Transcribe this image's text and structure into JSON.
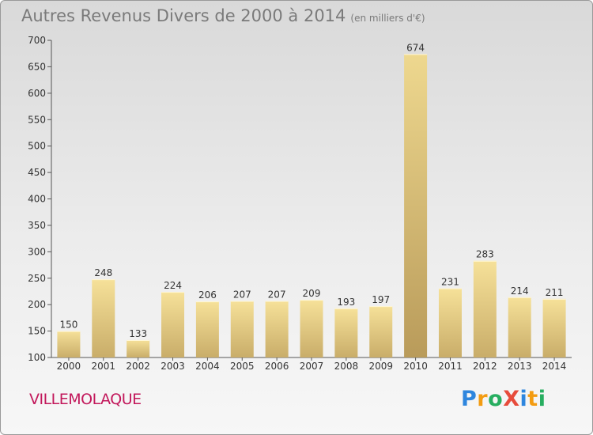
{
  "title": {
    "main": "Autres Revenus Divers de 2000 à 2014",
    "unit": "(en milliers d'€)"
  },
  "commune": "VILLEMOLAQUE",
  "logo": {
    "text": "ProXiti",
    "letters": [
      {
        "ch": "P",
        "color": "#2e86de"
      },
      {
        "ch": "r",
        "color": "#f39c12"
      },
      {
        "ch": "o",
        "color": "#27ae60"
      },
      {
        "ch": "X",
        "color": "#e74c3c"
      },
      {
        "ch": "i",
        "color": "#2e86de"
      },
      {
        "ch": "t",
        "color": "#f39c12"
      },
      {
        "ch": "i",
        "color": "#27ae60"
      }
    ]
  },
  "chart_data": {
    "type": "bar",
    "title": "Autres Revenus Divers de 2000 à 2014",
    "subtitle": "(en milliers d'€)",
    "categories": [
      "2000",
      "2001",
      "2002",
      "2003",
      "2004",
      "2005",
      "2006",
      "2007",
      "2008",
      "2009",
      "2010",
      "2011",
      "2012",
      "2013",
      "2014"
    ],
    "values": [
      150,
      248,
      133,
      224,
      206,
      207,
      207,
      209,
      193,
      197,
      674,
      231,
      283,
      214,
      211
    ],
    "ylim": [
      100,
      700
    ],
    "yticks": [
      100,
      150,
      200,
      250,
      300,
      350,
      400,
      450,
      500,
      550,
      600,
      650,
      700
    ],
    "grid": false,
    "colors": {
      "bar_light": "#f5dc8e",
      "bar_dark": "#c4a862",
      "axis": "#555555",
      "text": "#333333"
    }
  }
}
